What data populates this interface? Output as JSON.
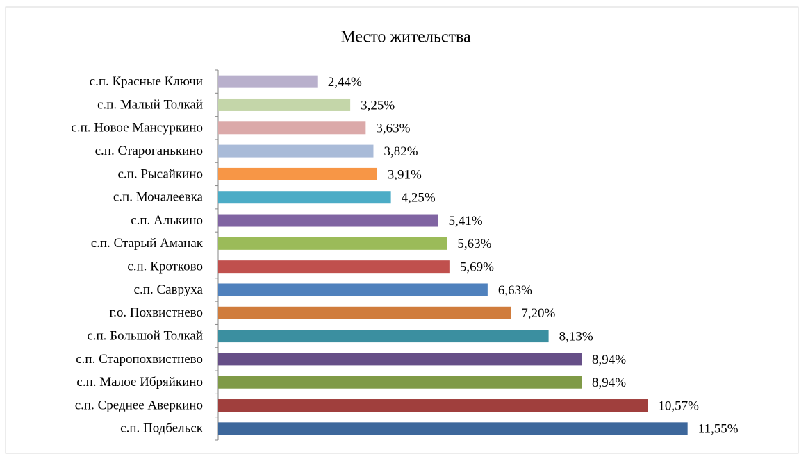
{
  "chart_data": {
    "type": "bar",
    "orientation": "horizontal",
    "title": "Место жительства",
    "categories": [
      "с.п. Красные Ключи",
      "с.п. Малый Толкай",
      "с.п. Новое Мансуркино",
      "с.п. Староганькино",
      "с.п. Рысайкино",
      "с.п. Мочалеевка",
      "с.п. Алькино",
      "с.п. Старый Аманак",
      "с.п. Кротково",
      "с.п. Савруха",
      "г.о. Похвистнево",
      "с.п. Большой Толкай",
      "с.п. Старопохвистнево",
      "с.п. Малое Ибряйкино",
      "с.п. Среднее Аверкино",
      "с.п. Подбельск"
    ],
    "values": [
      2.44,
      3.25,
      3.63,
      3.82,
      3.91,
      4.25,
      5.41,
      5.63,
      5.69,
      6.63,
      7.2,
      8.13,
      8.94,
      8.94,
      10.57,
      11.55
    ],
    "value_labels": [
      "2,44%",
      "3,25%",
      "3,63%",
      "3,82%",
      "3,91%",
      "4,25%",
      "5,41%",
      "5,63%",
      "5,69%",
      "6,63%",
      "7,20%",
      "8,13%",
      "8,94%",
      "8,94%",
      "10,57%",
      "11,55%"
    ],
    "colors": [
      "#b9b0cc",
      "#c4d6a9",
      "#dba9a9",
      "#a9bbd8",
      "#f79646",
      "#4bacc6",
      "#8064a2",
      "#9bbb59",
      "#c0504d",
      "#4f81bd",
      "#d07c3c",
      "#3b8fa0",
      "#664f87",
      "#7f9a47",
      "#a03f3d",
      "#3d679b"
    ],
    "xlim": [
      0,
      14
    ]
  }
}
